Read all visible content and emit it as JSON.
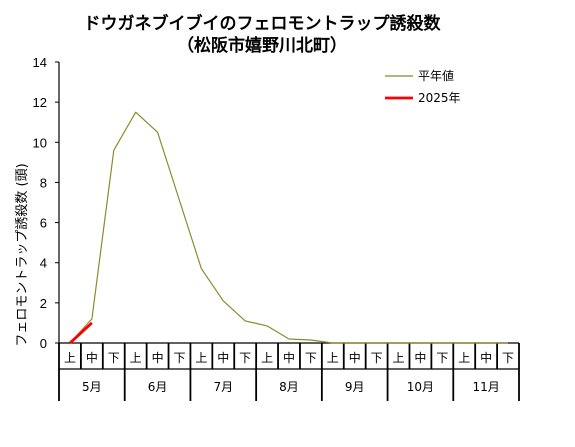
{
  "chart_data": {
    "type": "line",
    "title": "ドウガネブイブイのフェロモントラップ誘殺数",
    "subtitle": "（松阪市嬉野川北町）",
    "ylabel": "フェロモントラップ誘殺数 (頭)",
    "ylim": [
      0,
      14
    ],
    "yticks": [
      0,
      2,
      4,
      6,
      8,
      10,
      12,
      14
    ],
    "x_ticks": [
      "上",
      "中",
      "下",
      "上",
      "中",
      "下",
      "上",
      "中",
      "下",
      "上",
      "中",
      "下",
      "上",
      "中",
      "下",
      "上",
      "中",
      "下",
      "上",
      "中",
      "下"
    ],
    "months": [
      "5月",
      "6月",
      "7月",
      "8月",
      "9月",
      "10月",
      "11月"
    ],
    "legend_position": "top-right",
    "series": [
      {
        "name": "平年値",
        "color": "#8b8b2e",
        "values": [
          0,
          1.2,
          9.6,
          11.5,
          10.5,
          7.1,
          3.7,
          2.1,
          1.1,
          0.85,
          0.2,
          0.15,
          0,
          0,
          0,
          0,
          0,
          0,
          0,
          0,
          0
        ]
      },
      {
        "name": "2025年",
        "color": "#ff0000",
        "values": [
          0,
          1.0
        ]
      }
    ]
  }
}
